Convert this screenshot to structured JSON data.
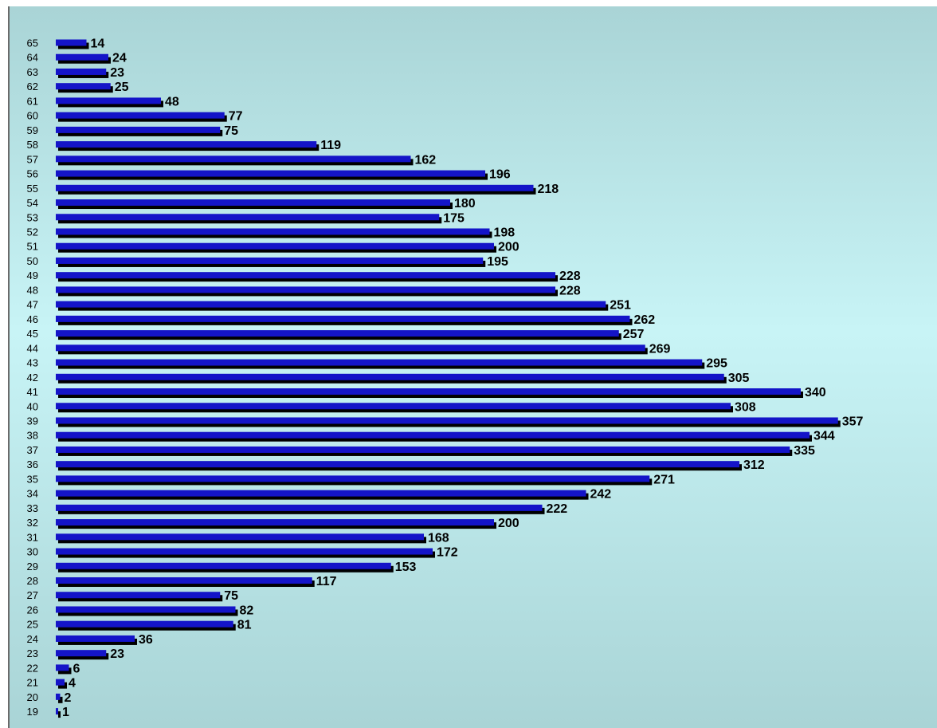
{
  "chart_data": {
    "type": "bar",
    "orientation": "horizontal",
    "categories": [
      "65",
      "64",
      "63",
      "62",
      "61",
      "60",
      "59",
      "58",
      "57",
      "56",
      "55",
      "54",
      "53",
      "52",
      "51",
      "50",
      "49",
      "48",
      "47",
      "46",
      "45",
      "44",
      "43",
      "42",
      "41",
      "40",
      "39",
      "38",
      "37",
      "36",
      "35",
      "34",
      "33",
      "32",
      "31",
      "30",
      "29",
      "28",
      "27",
      "26",
      "25",
      "24",
      "23",
      "22",
      "21",
      "20",
      "19"
    ],
    "values": [
      14,
      24,
      23,
      25,
      48,
      77,
      75,
      119,
      162,
      196,
      218,
      180,
      175,
      198,
      200,
      195,
      228,
      228,
      251,
      262,
      257,
      269,
      295,
      305,
      340,
      308,
      357,
      344,
      335,
      312,
      271,
      242,
      222,
      200,
      168,
      172,
      153,
      117,
      75,
      82,
      81,
      36,
      23,
      6,
      4,
      2,
      1
    ],
    "title": "",
    "xlabel": "",
    "ylabel": "",
    "xlim": [
      0,
      360
    ],
    "grid": false,
    "legend": "none",
    "data_labels": true,
    "colors": {
      "bar": "#1414c8",
      "bar_shadow": "#000000",
      "background": "#c8f4f6"
    }
  }
}
